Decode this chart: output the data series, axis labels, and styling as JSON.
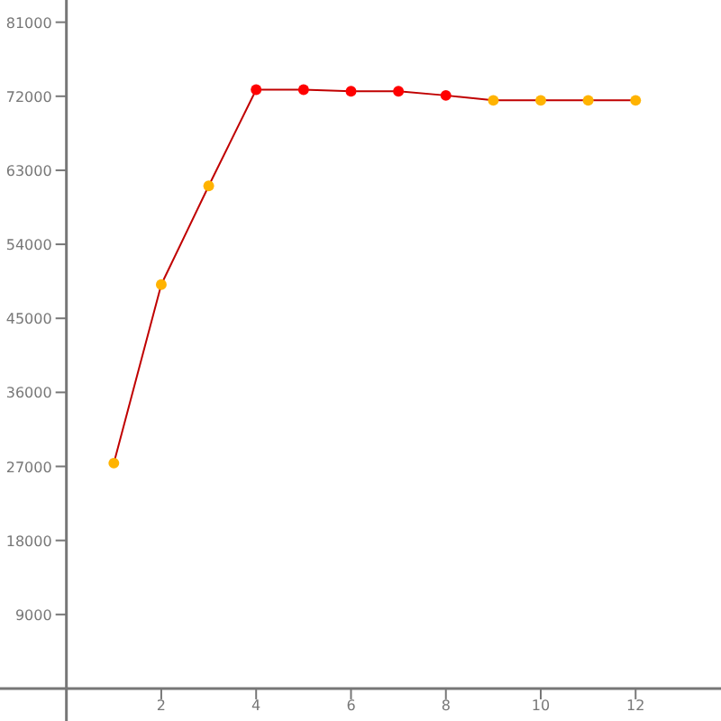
{
  "chart_data": {
    "type": "line",
    "x": [
      1,
      2,
      3,
      4,
      5,
      6,
      7,
      8,
      9,
      10,
      11,
      12
    ],
    "series": [
      {
        "color": "#c00000",
        "values": [
          27400,
          49100,
          61100,
          72800,
          72800,
          72600,
          72600,
          72100,
          71500,
          71500,
          71500,
          71500
        ]
      }
    ],
    "colors": [
      "#ffb300",
      "#ffb300",
      "#ffb300",
      "#ff0000",
      "#ff0000",
      "#ff0000",
      "#ff0000",
      "#ff0000",
      "#ffb300",
      "#ffb300",
      "#ffb300",
      "#ffb300"
    ],
    "marker": "circle",
    "line_style": "solid",
    "grid": false,
    "xlim": [
      -1.4,
      13.8
    ],
    "xticks": [
      2,
      4,
      6,
      8,
      10,
      12
    ],
    "ylim": [
      -3950,
      83700
    ],
    "yticks": [
      9000,
      18000,
      27000,
      36000,
      45000,
      54000,
      63000,
      72000,
      81000
    ]
  }
}
